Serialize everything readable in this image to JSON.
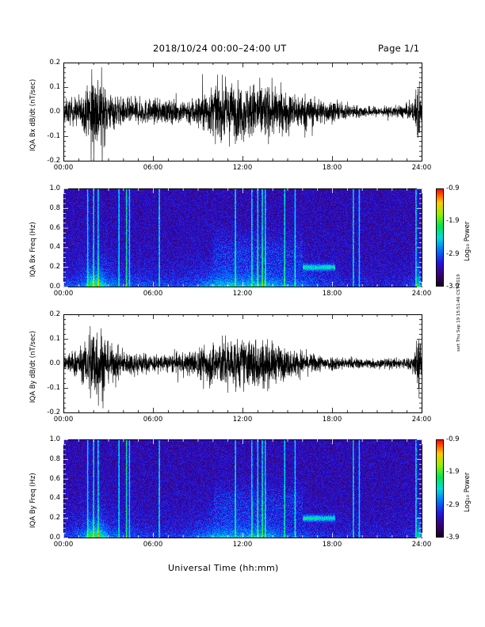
{
  "header": {
    "title": "2018/10/24  00:00–24:00 UT",
    "page": "Page 1/1"
  },
  "side_stamp": "ssrt Thu Sep 19 15:51:46 CST 2019",
  "xlabel": "Universal Time (hh:mm)",
  "x_ticks": [
    "00:00",
    "06:00",
    "12:00",
    "18:00",
    "24:00"
  ],
  "colorbar": {
    "label": "Log₁₀ Power",
    "ticks": [
      "-0.9",
      "-1.9",
      "-2.9",
      "-3.9"
    ],
    "range": [
      -3.9,
      -0.9
    ]
  },
  "chart_data": [
    {
      "type": "line",
      "ylabel": "IQA Bx dB/dt (nT/sec)",
      "xlim": [
        0,
        24
      ],
      "ylim": [
        -0.2,
        0.2
      ],
      "y_ticks": [
        "0.2",
        "0.1",
        "0.0",
        "-0.1",
        "-0.2"
      ],
      "y_tick_values": [
        0.2,
        0.1,
        0.0,
        -0.1,
        -0.2
      ],
      "activity_envelope": {
        "x_hours": [
          0,
          0.5,
          1.0,
          1.5,
          1.75,
          2.0,
          2.5,
          3.0,
          4.0,
          5.0,
          6.0,
          7.0,
          8.0,
          9.0,
          9.5,
          10.0,
          11.0,
          12.0,
          13.0,
          14.0,
          15.0,
          16.0,
          17.0,
          18.0,
          19.0,
          20.0,
          21.0,
          22.0,
          23.0,
          23.5,
          23.8,
          24.0
        ],
        "amplitude": [
          0.08,
          0.09,
          0.1,
          0.14,
          0.25,
          0.3,
          0.25,
          0.14,
          0.09,
          0.09,
          0.08,
          0.08,
          0.08,
          0.11,
          0.14,
          0.17,
          0.2,
          0.18,
          0.2,
          0.17,
          0.13,
          0.12,
          0.09,
          0.07,
          0.05,
          0.04,
          0.035,
          0.035,
          0.05,
          0.07,
          0.25,
          0.06
        ]
      }
    },
    {
      "type": "heatmap",
      "ylabel": "IQA Bx Freq (Hz)",
      "xlim": [
        0,
        24
      ],
      "ylim": [
        0,
        1.0
      ],
      "y_ticks": [
        "1.0",
        "0.8",
        "0.6",
        "0.4",
        "0.2",
        "0.0"
      ],
      "y_tick_values": [
        1.0,
        0.8,
        0.6,
        0.4,
        0.2,
        0.0
      ],
      "z_range": [
        -3.9,
        -0.9
      ],
      "bursts_hours": [
        1.6,
        2.0,
        2.3,
        3.7,
        4.2,
        4.4,
        6.4,
        11.5,
        12.6,
        13.0,
        13.3,
        13.5,
        14.8,
        15.5,
        19.4,
        19.8,
        23.6
      ],
      "pc1_band": {
        "start_hour": 16.0,
        "end_hour": 18.2,
        "freq_hz": 0.2
      }
    },
    {
      "type": "line",
      "ylabel": "IQA By dB/dt (nT/sec)",
      "xlim": [
        0,
        24
      ],
      "ylim": [
        -0.2,
        0.2
      ],
      "y_ticks": [
        "0.2",
        "0.1",
        "0.0",
        "-0.1",
        "-0.2"
      ],
      "y_tick_values": [
        0.2,
        0.1,
        0.0,
        -0.1,
        -0.2
      ],
      "activity_envelope": {
        "x_hours": [
          0,
          0.5,
          1.0,
          1.5,
          1.75,
          2.0,
          2.5,
          3.0,
          4.0,
          5.0,
          6.0,
          7.0,
          8.0,
          9.0,
          9.5,
          10.0,
          11.0,
          12.0,
          13.0,
          14.0,
          15.0,
          16.0,
          17.0,
          18.0,
          19.0,
          20.0,
          21.0,
          22.0,
          23.0,
          23.5,
          23.8,
          24.0
        ],
        "amplitude": [
          0.07,
          0.08,
          0.1,
          0.14,
          0.28,
          0.3,
          0.25,
          0.13,
          0.08,
          0.08,
          0.06,
          0.06,
          0.07,
          0.1,
          0.13,
          0.15,
          0.18,
          0.16,
          0.18,
          0.14,
          0.1,
          0.08,
          0.06,
          0.05,
          0.04,
          0.035,
          0.035,
          0.035,
          0.04,
          0.06,
          0.25,
          0.06
        ]
      }
    },
    {
      "type": "heatmap",
      "ylabel": "IQA By Freq (Hz)",
      "xlim": [
        0,
        24
      ],
      "ylim": [
        0,
        1.0
      ],
      "y_ticks": [
        "1.0",
        "0.8",
        "0.6",
        "0.4",
        "0.2",
        "0.0"
      ],
      "y_tick_values": [
        1.0,
        0.8,
        0.6,
        0.4,
        0.2,
        0.0
      ],
      "z_range": [
        -3.9,
        -0.9
      ],
      "bursts_hours": [
        1.6,
        2.0,
        2.3,
        3.7,
        4.2,
        4.4,
        6.4,
        11.5,
        12.6,
        13.0,
        13.3,
        13.5,
        14.8,
        15.5,
        19.4,
        19.8,
        23.6
      ],
      "pc1_band": {
        "start_hour": 16.0,
        "end_hour": 18.2,
        "freq_hz": 0.2
      }
    }
  ]
}
